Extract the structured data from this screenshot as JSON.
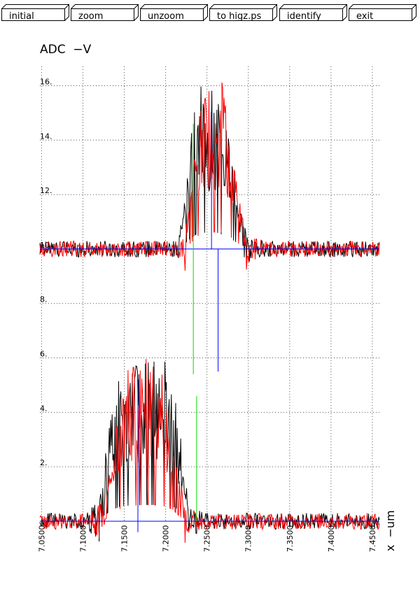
{
  "toolbar": {
    "buttons": [
      {
        "name": "initial-button",
        "label": "initial"
      },
      {
        "name": "zoom-button",
        "label": "zoom"
      },
      {
        "name": "unzoom-button",
        "label": "unzoom"
      },
      {
        "name": "to-higz-button",
        "label": "to higz.ps"
      },
      {
        "name": "identify-button",
        "label": "identify"
      },
      {
        "name": "exit-button",
        "label": "exit"
      }
    ]
  },
  "chart_data": {
    "type": "line",
    "title": "",
    "ylabel": "ADC  −V",
    "xlabel": "x  −um",
    "xlim": [
      7.048,
      7.4585
    ],
    "ylim": [
      0,
      16.5
    ],
    "x_ticks": [
      7.05,
      7.1,
      7.15,
      7.2,
      7.25,
      7.3,
      7.35,
      7.4,
      7.45
    ],
    "x_tick_labels": [
      "7.0500",
      "7.1000",
      "7.1500",
      "7.2000",
      "7.2500",
      "7.3000",
      "7.3500",
      "7.4000",
      "7.4500"
    ],
    "y_ticks": [
      2,
      4,
      6,
      8,
      10,
      12,
      14,
      16
    ],
    "y_tick_labels": [
      "2.",
      "4.",
      "6.",
      "8.",
      "10.",
      "12.",
      "14.",
      "16."
    ],
    "grid": true,
    "grid_style": "dotted",
    "colors": {
      "series_a": "#000000",
      "series_b": "#ff0000",
      "marker_green": "#00dd00",
      "marker_blue": "#0000ff",
      "baseline": "#0000ff",
      "grid": "#555555"
    },
    "series": [
      {
        "color": "#000000",
        "baseline": 10,
        "envelope": [
          [
            7.048,
            0.3
          ],
          [
            7.215,
            0.3
          ],
          [
            7.222,
            1.5
          ],
          [
            7.232,
            4.5
          ],
          [
            7.24,
            6.0
          ],
          [
            7.262,
            6.0
          ],
          [
            7.275,
            4.5
          ],
          [
            7.288,
            2.0
          ],
          [
            7.298,
            0.5
          ],
          [
            7.32,
            0.3
          ],
          [
            7.4585,
            0.3
          ]
        ]
      },
      {
        "color": "#ff0000",
        "baseline": 10,
        "envelope": [
          [
            7.048,
            0.3
          ],
          [
            7.22,
            0.3
          ],
          [
            7.228,
            1.5
          ],
          [
            7.238,
            4.5
          ],
          [
            7.245,
            6.2
          ],
          [
            7.268,
            6.2
          ],
          [
            7.278,
            4.5
          ],
          [
            7.288,
            2.0
          ],
          [
            7.3,
            0.5
          ],
          [
            7.32,
            0.3
          ],
          [
            7.4585,
            0.3
          ]
        ]
      },
      {
        "color": "#000000",
        "baseline": 0,
        "envelope": [
          [
            7.048,
            0.3
          ],
          [
            7.105,
            0.3
          ],
          [
            7.12,
            1.0
          ],
          [
            7.132,
            3.5
          ],
          [
            7.145,
            5.5
          ],
          [
            7.16,
            5.8
          ],
          [
            7.18,
            6.0
          ],
          [
            7.2,
            6.0
          ],
          [
            7.212,
            5.0
          ],
          [
            7.222,
            2.0
          ],
          [
            7.23,
            0.6
          ],
          [
            7.25,
            0.3
          ],
          [
            7.4585,
            0.3
          ]
        ]
      },
      {
        "color": "#ff0000",
        "baseline": 0,
        "envelope": [
          [
            7.048,
            0.3
          ],
          [
            7.11,
            0.3
          ],
          [
            7.128,
            1.0
          ],
          [
            7.14,
            3.5
          ],
          [
            7.15,
            5.5
          ],
          [
            7.165,
            5.8
          ],
          [
            7.18,
            6.1
          ],
          [
            7.195,
            5.8
          ],
          [
            7.208,
            4.5
          ],
          [
            7.218,
            1.5
          ],
          [
            7.228,
            0.5
          ],
          [
            7.25,
            0.3
          ],
          [
            7.4585,
            0.3
          ]
        ]
      }
    ],
    "baselines": [
      10,
      0
    ],
    "markers": [
      {
        "color": "#00dd00",
        "x": 7.2335,
        "y_from": 5.4,
        "y_to": 14.6
      },
      {
        "color": "#0000ff",
        "x": 7.2555,
        "y_from": 10,
        "y_to": 15.2
      },
      {
        "color": "#0000ff",
        "x": 7.2635,
        "y_from": 5.5,
        "y_to": 10
      },
      {
        "color": "#00dd00",
        "x": 7.2375,
        "y_from": 0,
        "y_to": 4.6
      },
      {
        "color": "#0000ff",
        "x": 7.1665,
        "y_from": -0.4,
        "y_to": 5.2
      }
    ]
  }
}
